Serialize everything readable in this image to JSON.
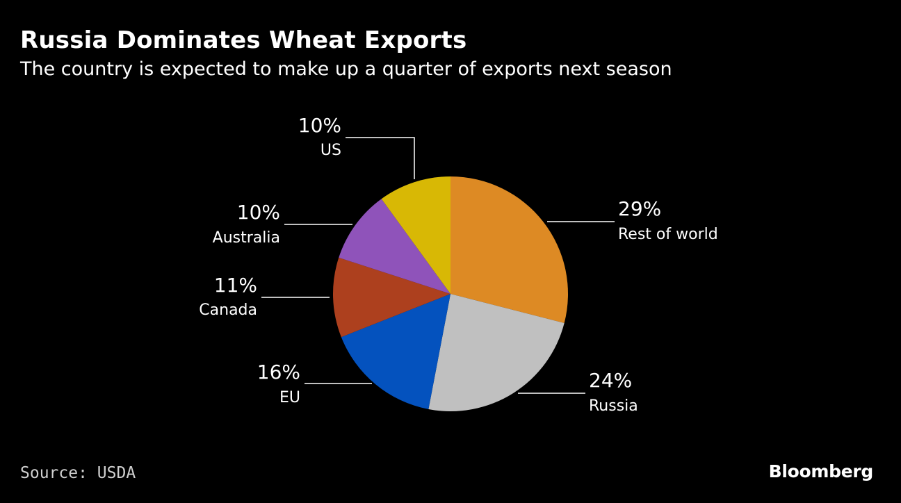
{
  "header": {
    "title": "Russia Dominates Wheat Exports",
    "subtitle": "The country is expected to make up a quarter of exports next season"
  },
  "footer": {
    "source": "Source: USDA",
    "brand": "Bloomberg"
  },
  "chart_data": {
    "type": "pie",
    "start": "12 o'clock",
    "direction": "clockwise",
    "slices": [
      {
        "label": "Rest of world",
        "value": 29,
        "display": "29%",
        "color": "#dd8a24",
        "label_side": "right"
      },
      {
        "label": "Russia",
        "value": 24,
        "display": "24%",
        "color": "#c0c0c0",
        "label_side": "right"
      },
      {
        "label": "EU",
        "value": 16,
        "display": "16%",
        "color": "#0452be",
        "label_side": "left"
      },
      {
        "label": "Canada",
        "value": 11,
        "display": "11%",
        "color": "#ad401e",
        "label_side": "left"
      },
      {
        "label": "Australia",
        "value": 10,
        "display": "10%",
        "color": "#8f53ba",
        "label_side": "left"
      },
      {
        "label": "US",
        "value": 10,
        "display": "10%",
        "color": "#d8b805",
        "label_side": "top"
      }
    ]
  }
}
